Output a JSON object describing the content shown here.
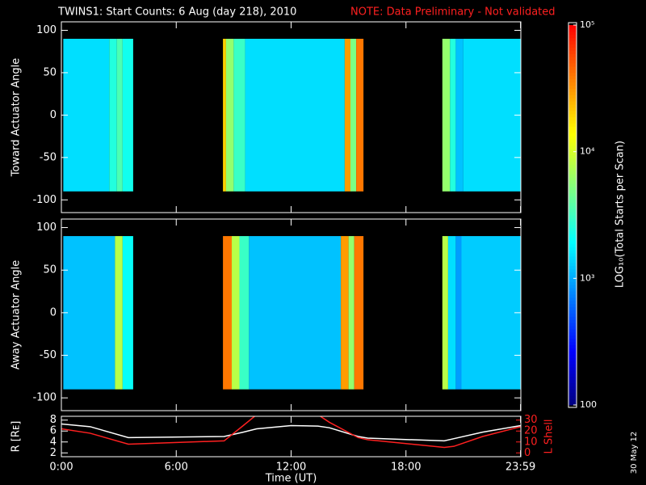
{
  "title": "TWINS1: Start Counts:  6 Aug (day 218), 2010",
  "note": "NOTE: Data Preliminary - Not validated",
  "stamp": "30 May 12",
  "colorbar": {
    "label": "LOG₁₀(Total Starts per Scan)",
    "lim": [
      100,
      100000
    ],
    "log": true,
    "ticks": [
      {
        "value": 100000,
        "label": "10⁵"
      },
      {
        "value": 10000,
        "label": "10⁴"
      },
      {
        "value": 1000,
        "label": "10³"
      },
      100
    ],
    "colors": [
      "#000080",
      "#0000ff",
      "#0080ff",
      "#00ffff",
      "#80ff80",
      "#ffff00",
      "#ff8000",
      "#ff0000"
    ]
  },
  "chart_data": [
    {
      "type": "heatmap",
      "ylabel": "Toward Actuator Angle",
      "xlim": [
        0,
        24
      ],
      "ylim": [
        -115,
        110
      ],
      "yticks": [
        -100,
        -50,
        0,
        50,
        100
      ],
      "y_extent": [
        -90,
        90
      ],
      "strips": [
        {
          "x": [
            0.1,
            2.5
          ],
          "value": 1500
        },
        {
          "x": [
            2.5,
            2.9
          ],
          "value": 2500
        },
        {
          "x": [
            2.9,
            3.2
          ],
          "value": 3500
        },
        {
          "x": [
            3.2,
            3.75
          ],
          "value": 2200
        },
        {
          "x": [
            8.44,
            8.6
          ],
          "value": 20000
        },
        {
          "x": [
            8.6,
            9.0
          ],
          "value": 6000
        },
        {
          "x": [
            9.0,
            9.6
          ],
          "value": 3000
        },
        {
          "x": [
            9.6,
            14.8
          ],
          "value": 1500
        },
        {
          "x": [
            14.8,
            15.1
          ],
          "value": 30000
        },
        {
          "x": [
            15.1,
            15.4
          ],
          "value": 5000
        },
        {
          "x": [
            15.4,
            15.78
          ],
          "value": 40000
        },
        {
          "x": [
            19.9,
            20.3
          ],
          "value": 6000
        },
        {
          "x": [
            20.3,
            20.6
          ],
          "value": 2500
        },
        {
          "x": [
            20.6,
            21.0
          ],
          "value": 1200
        },
        {
          "x": [
            21.0,
            24
          ],
          "value": 1500
        }
      ]
    },
    {
      "type": "heatmap",
      "ylabel": "Away Actuator Angle",
      "xlim": [
        0,
        24
      ],
      "ylim": [
        -115,
        110
      ],
      "yticks": [
        -100,
        -50,
        0,
        50,
        100
      ],
      "y_extent": [
        -90,
        90
      ],
      "strips": [
        {
          "x": [
            0.1,
            2.8
          ],
          "value": 1200
        },
        {
          "x": [
            2.8,
            3.2
          ],
          "value": 8000
        },
        {
          "x": [
            3.2,
            3.75
          ],
          "value": 2000
        },
        {
          "x": [
            8.44,
            8.9
          ],
          "value": 40000
        },
        {
          "x": [
            8.9,
            9.3
          ],
          "value": 8000
        },
        {
          "x": [
            9.3,
            9.8
          ],
          "value": 3000
        },
        {
          "x": [
            9.8,
            14.6
          ],
          "value": 1200
        },
        {
          "x": [
            14.6,
            15.0
          ],
          "value": 30000
        },
        {
          "x": [
            15.0,
            15.3
          ],
          "value": 6000
        },
        {
          "x": [
            15.3,
            15.78
          ],
          "value": 40000
        },
        {
          "x": [
            19.9,
            20.2
          ],
          "value": 8000
        },
        {
          "x": [
            20.2,
            20.6
          ],
          "value": 1500
        },
        {
          "x": [
            20.6,
            20.9
          ],
          "value": 900
        },
        {
          "x": [
            20.9,
            24
          ],
          "value": 1300
        }
      ]
    },
    {
      "type": "line",
      "xlabel": "Time (UT)",
      "ylabel": "R [Rᴇ]",
      "y2label": "L Shell",
      "xlim": [
        0,
        24
      ],
      "ylim": [
        1.3,
        8.7
      ],
      "yticks": [
        2,
        4,
        6,
        8
      ],
      "y2lim": [
        -3.5,
        33.5
      ],
      "y2ticks": [
        0,
        10,
        20,
        30
      ],
      "xticks": [
        {
          "value": 0,
          "label": "0:00"
        },
        {
          "value": 6,
          "label": "6:00"
        },
        {
          "value": 12,
          "label": "12:00"
        },
        {
          "value": 18,
          "label": "18:00"
        },
        {
          "value": 23.983,
          "label": "23:59"
        }
      ],
      "x": [
        0,
        1.5,
        3.5,
        8.5,
        9.5,
        10.2,
        12,
        13.4,
        14,
        15.5,
        16,
        20,
        20.5,
        22,
        24
      ],
      "series": [
        {
          "name": "R",
          "color": "#ffffff",
          "values": [
            7.3,
            6.8,
            4.8,
            5.0,
            5.8,
            6.4,
            7.0,
            6.9,
            6.6,
            5.0,
            4.7,
            4.2,
            4.6,
            5.8,
            7.0
          ]
        },
        {
          "name": "L Shell",
          "color": "#ff2020",
          "axis": "y2",
          "values": [
            22,
            18,
            8,
            11,
            25,
            35,
            null,
            35,
            28,
            14,
            12,
            5,
            6,
            15,
            24
          ]
        }
      ]
    }
  ]
}
